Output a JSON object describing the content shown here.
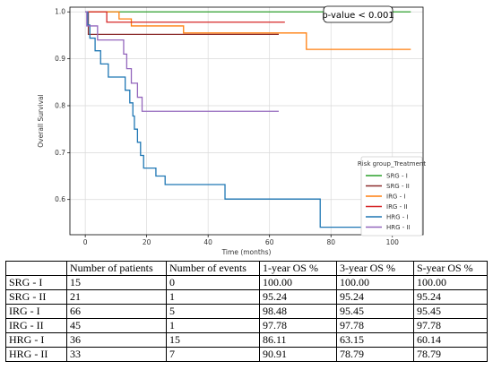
{
  "chart_data": {
    "type": "line",
    "title": "",
    "xlabel": "Time (months)",
    "ylabel": "Overall Survival",
    "xlim": [
      -5,
      110
    ],
    "ylim": [
      0.525,
      1.01
    ],
    "xticks": [
      0,
      20,
      40,
      60,
      80,
      100
    ],
    "yticks": [
      0.6,
      0.7,
      0.8,
      0.9,
      1.0
    ],
    "xtick_labels": [
      "0",
      "20",
      "40",
      "60",
      "80",
      "100"
    ],
    "ytick_labels": [
      "0.6",
      "0.7",
      "0.8",
      "0.9",
      "1.0"
    ],
    "grid": true,
    "annotation": "p-value < 0.001",
    "legend": {
      "title": "Risk group_Treatment",
      "position": "right"
    },
    "series": [
      {
        "name": "SRG - I",
        "color": "#2ca02c",
        "points": [
          [
            0,
            1.0
          ],
          [
            106,
            1.0
          ]
        ]
      },
      {
        "name": "SRG - II",
        "color": "#8c2d2d",
        "points": [
          [
            0,
            1.0
          ],
          [
            1.0,
            0.952
          ],
          [
            63,
            0.952
          ]
        ]
      },
      {
        "name": "IRG - I",
        "color": "#ff7f0e",
        "points": [
          [
            0,
            1.0
          ],
          [
            11,
            0.985
          ],
          [
            15,
            0.97
          ],
          [
            22,
            0.97
          ],
          [
            32,
            0.955
          ],
          [
            69,
            0.955
          ],
          [
            72,
            0.92
          ],
          [
            106,
            0.92
          ]
        ]
      },
      {
        "name": "IRG - II",
        "color": "#d62728",
        "points": [
          [
            0,
            1.0
          ],
          [
            7,
            0.978
          ],
          [
            65,
            0.978
          ]
        ]
      },
      {
        "name": "HRG - I",
        "color": "#1f77b4",
        "points": [
          [
            0,
            1.0
          ],
          [
            0.8,
            0.972
          ],
          [
            1.5,
            0.944
          ],
          [
            3.2,
            0.917
          ],
          [
            5,
            0.889
          ],
          [
            7.5,
            0.861
          ],
          [
            13,
            0.833
          ],
          [
            14.5,
            0.806
          ],
          [
            15.5,
            0.778
          ],
          [
            16,
            0.75
          ],
          [
            17,
            0.722
          ],
          [
            18,
            0.694
          ],
          [
            19,
            0.667
          ],
          [
            21,
            0.667
          ],
          [
            23,
            0.65
          ],
          [
            26,
            0.632
          ],
          [
            45,
            0.632
          ],
          [
            45.5,
            0.601
          ],
          [
            76,
            0.601
          ],
          [
            76.5,
            0.541
          ],
          [
            106,
            0.541
          ]
        ]
      },
      {
        "name": "HRG - II",
        "color": "#9467bd",
        "points": [
          [
            0,
            1.0
          ],
          [
            0.5,
            0.97
          ],
          [
            3,
            0.97
          ],
          [
            4,
            0.94
          ],
          [
            12,
            0.94
          ],
          [
            12.5,
            0.91
          ],
          [
            13.5,
            0.879
          ],
          [
            15,
            0.848
          ],
          [
            17,
            0.818
          ],
          [
            18.5,
            0.788
          ],
          [
            63,
            0.788
          ]
        ]
      }
    ]
  },
  "table": {
    "headers": [
      "",
      "Number of patients",
      "Number of events",
      "1-year OS %",
      "3-year OS %",
      "S-year OS %"
    ],
    "rows": [
      [
        "SRG - I",
        "15",
        "0",
        "100.00",
        "100.00",
        "100.00"
      ],
      [
        "SRG - II",
        "21",
        "1",
        "95.24",
        "95.24",
        "95.24"
      ],
      [
        "IRG - I",
        "66",
        "5",
        "98.48",
        "95.45",
        "95.45"
      ],
      [
        "IRG - II",
        "45",
        "1",
        "97.78",
        "97.78",
        "97.78"
      ],
      [
        "HRG -  I",
        "36",
        "15",
        "86.11",
        "63.15",
        "60.14"
      ],
      [
        "HRG -  II",
        "33",
        "7",
        "90.91",
        "78.79",
        "78.79"
      ]
    ]
  }
}
